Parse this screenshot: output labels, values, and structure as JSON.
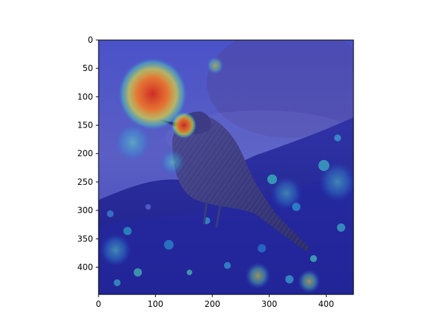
{
  "chart_data": {
    "type": "heatmap",
    "title": "",
    "xlabel": "",
    "ylabel": "",
    "xlim": [
      0,
      448
    ],
    "ylim": [
      448,
      0
    ],
    "x_ticks": [
      0,
      100,
      200,
      300,
      400
    ],
    "y_ticks": [
      0,
      50,
      100,
      150,
      200,
      250,
      300,
      350,
      400
    ],
    "x_tick_labels": [
      "0",
      "100",
      "200",
      "300",
      "400"
    ],
    "y_tick_labels": [
      "0",
      "50",
      "100",
      "150",
      "200",
      "250",
      "300",
      "350",
      "400"
    ],
    "grid": false,
    "colormap": "jet",
    "background_image": "bird-photo",
    "hotspots": [
      {
        "x": 95,
        "y": 95,
        "intensity": 1.0,
        "spread": 55
      },
      {
        "x": 150,
        "y": 150,
        "intensity": 0.9,
        "spread": 20
      },
      {
        "x": 205,
        "y": 45,
        "intensity": 0.55,
        "spread": 14
      },
      {
        "x": 60,
        "y": 180,
        "intensity": 0.45,
        "spread": 30
      },
      {
        "x": 130,
        "y": 215,
        "intensity": 0.4,
        "spread": 20
      },
      {
        "x": 280,
        "y": 415,
        "intensity": 0.55,
        "spread": 20
      },
      {
        "x": 370,
        "y": 425,
        "intensity": 0.55,
        "spread": 18
      },
      {
        "x": 30,
        "y": 370,
        "intensity": 0.45,
        "spread": 25
      },
      {
        "x": 420,
        "y": 250,
        "intensity": 0.35,
        "spread": 30
      },
      {
        "x": 330,
        "y": 270,
        "intensity": 0.3,
        "spread": 25
      }
    ]
  }
}
